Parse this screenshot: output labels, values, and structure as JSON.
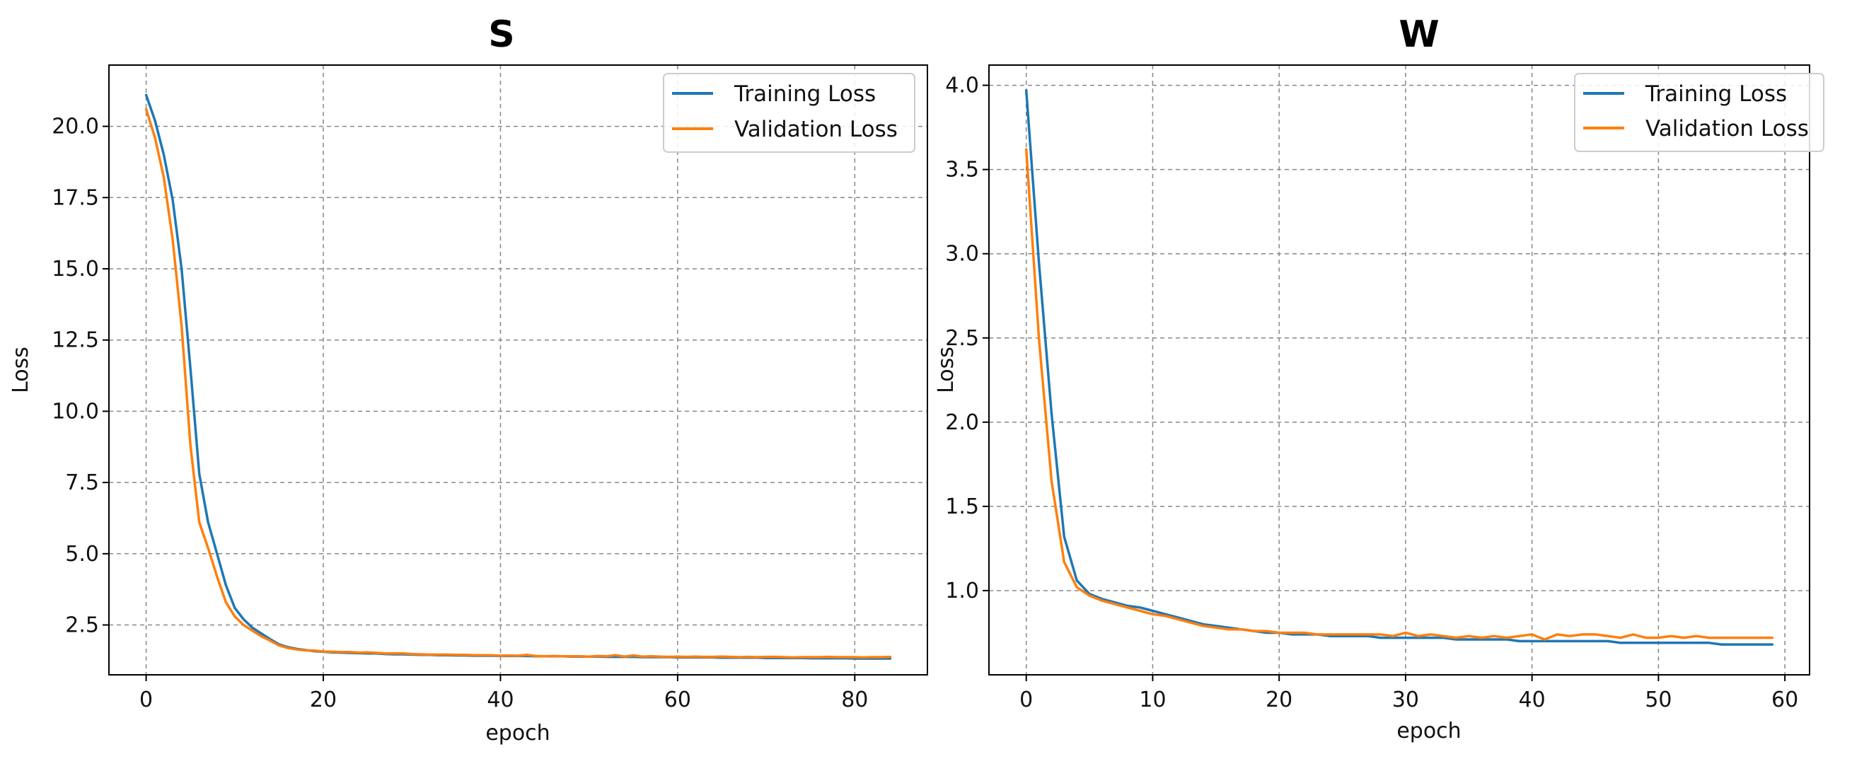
{
  "chart_data": [
    {
      "type": "line",
      "title": "S",
      "xlabel": "epoch",
      "ylabel": "Loss",
      "xlim": [
        -4.2,
        88.2
      ],
      "ylim": [
        0.75,
        22.15
      ],
      "xticks": [
        0,
        20,
        40,
        60,
        80
      ],
      "xtick_labels": [
        "0",
        "20",
        "40",
        "60",
        "80"
      ],
      "yticks": [
        2.5,
        5.0,
        7.5,
        10.0,
        12.5,
        15.0,
        17.5,
        20.0
      ],
      "ytick_labels": [
        "2.5",
        "5.0",
        "7.5",
        "10.0",
        "12.5",
        "15.0",
        "17.5",
        "20.0"
      ],
      "grid": true,
      "legend_position": "top-right",
      "series": [
        {
          "name": "Training Loss",
          "color": "#1f77b4",
          "x": [
            0,
            1,
            2,
            3,
            4,
            5,
            6,
            7,
            8,
            9,
            10,
            11,
            12,
            13,
            14,
            15,
            16,
            17,
            18,
            19,
            20,
            21,
            22,
            23,
            24,
            25,
            26,
            27,
            28,
            29,
            30,
            31,
            32,
            33,
            34,
            35,
            36,
            37,
            38,
            39,
            40,
            41,
            42,
            43,
            44,
            45,
            46,
            47,
            48,
            49,
            50,
            51,
            52,
            53,
            54,
            55,
            56,
            57,
            58,
            59,
            60,
            61,
            62,
            63,
            64,
            65,
            66,
            67,
            68,
            69,
            70,
            71,
            72,
            73,
            74,
            75,
            76,
            77,
            78,
            79,
            80,
            81,
            82,
            83,
            84
          ],
          "values": [
            21.1,
            20.2,
            19.0,
            17.4,
            15.0,
            11.5,
            7.8,
            6.1,
            5.0,
            3.9,
            3.1,
            2.7,
            2.4,
            2.2,
            2.0,
            1.82,
            1.72,
            1.66,
            1.62,
            1.58,
            1.56,
            1.54,
            1.53,
            1.52,
            1.51,
            1.5,
            1.5,
            1.48,
            1.47,
            1.47,
            1.46,
            1.45,
            1.45,
            1.44,
            1.44,
            1.43,
            1.43,
            1.42,
            1.42,
            1.42,
            1.41,
            1.41,
            1.41,
            1.41,
            1.4,
            1.4,
            1.4,
            1.4,
            1.39,
            1.39,
            1.39,
            1.39,
            1.38,
            1.38,
            1.38,
            1.38,
            1.37,
            1.37,
            1.37,
            1.37,
            1.36,
            1.36,
            1.36,
            1.36,
            1.36,
            1.35,
            1.35,
            1.35,
            1.35,
            1.35,
            1.34,
            1.34,
            1.34,
            1.34,
            1.34,
            1.33,
            1.33,
            1.33,
            1.33,
            1.33,
            1.32,
            1.32,
            1.32,
            1.32,
            1.32
          ]
        },
        {
          "name": "Validation Loss",
          "color": "#ff7f0e",
          "x": [
            0,
            1,
            2,
            3,
            4,
            5,
            6,
            7,
            8,
            9,
            10,
            11,
            12,
            13,
            14,
            15,
            16,
            17,
            18,
            19,
            20,
            21,
            22,
            23,
            24,
            25,
            26,
            27,
            28,
            29,
            30,
            31,
            32,
            33,
            34,
            35,
            36,
            37,
            38,
            39,
            40,
            41,
            42,
            43,
            44,
            45,
            46,
            47,
            48,
            49,
            50,
            51,
            52,
            53,
            54,
            55,
            56,
            57,
            58,
            59,
            60,
            61,
            62,
            63,
            64,
            65,
            66,
            67,
            68,
            69,
            70,
            71,
            72,
            73,
            74,
            75,
            76,
            77,
            78,
            79,
            80,
            81,
            82,
            83,
            84
          ],
          "values": [
            20.6,
            19.6,
            18.2,
            16.0,
            13.0,
            8.8,
            6.1,
            5.2,
            4.2,
            3.3,
            2.8,
            2.5,
            2.3,
            2.1,
            1.95,
            1.78,
            1.69,
            1.64,
            1.61,
            1.6,
            1.57,
            1.56,
            1.55,
            1.55,
            1.53,
            1.54,
            1.52,
            1.5,
            1.5,
            1.5,
            1.48,
            1.47,
            1.46,
            1.46,
            1.46,
            1.45,
            1.45,
            1.44,
            1.44,
            1.44,
            1.42,
            1.43,
            1.42,
            1.45,
            1.41,
            1.4,
            1.41,
            1.4,
            1.4,
            1.4,
            1.39,
            1.41,
            1.4,
            1.44,
            1.39,
            1.43,
            1.39,
            1.4,
            1.39,
            1.38,
            1.39,
            1.38,
            1.39,
            1.38,
            1.38,
            1.39,
            1.38,
            1.37,
            1.38,
            1.37,
            1.38,
            1.38,
            1.37,
            1.36,
            1.37,
            1.37,
            1.37,
            1.38,
            1.37,
            1.37,
            1.37,
            1.36,
            1.37,
            1.37,
            1.38
          ]
        }
      ]
    },
    {
      "type": "line",
      "title": "W",
      "xlabel": "epoch",
      "ylabel": "Loss",
      "xlim": [
        -2.95,
        61.95
      ],
      "ylim": [
        0.5,
        4.12
      ],
      "xticks": [
        0,
        10,
        20,
        30,
        40,
        50,
        60
      ],
      "xtick_labels": [
        "0",
        "10",
        "20",
        "30",
        "40",
        "50",
        "60"
      ],
      "yticks": [
        1.0,
        1.5,
        2.0,
        2.5,
        3.0,
        3.5,
        4.0
      ],
      "ytick_labels": [
        "1.0",
        "1.5",
        "2.0",
        "2.5",
        "3.0",
        "3.5",
        "4.0"
      ],
      "grid": true,
      "legend_position": "top-right",
      "series": [
        {
          "name": "Training Loss",
          "color": "#1f77b4",
          "x": [
            0,
            1,
            2,
            3,
            4,
            5,
            6,
            7,
            8,
            9,
            10,
            11,
            12,
            13,
            14,
            15,
            16,
            17,
            18,
            19,
            20,
            21,
            22,
            23,
            24,
            25,
            26,
            27,
            28,
            29,
            30,
            31,
            32,
            33,
            34,
            35,
            36,
            37,
            38,
            39,
            40,
            41,
            42,
            43,
            44,
            45,
            46,
            47,
            48,
            49,
            50,
            51,
            52,
            53,
            54,
            55,
            56,
            57,
            58,
            59
          ],
          "values": [
            3.97,
            2.95,
            2.05,
            1.32,
            1.06,
            0.98,
            0.95,
            0.93,
            0.91,
            0.9,
            0.88,
            0.86,
            0.84,
            0.82,
            0.8,
            0.79,
            0.78,
            0.77,
            0.76,
            0.75,
            0.75,
            0.74,
            0.74,
            0.74,
            0.73,
            0.73,
            0.73,
            0.73,
            0.72,
            0.72,
            0.72,
            0.72,
            0.72,
            0.72,
            0.71,
            0.71,
            0.71,
            0.71,
            0.71,
            0.7,
            0.7,
            0.7,
            0.7,
            0.7,
            0.7,
            0.7,
            0.7,
            0.69,
            0.69,
            0.69,
            0.69,
            0.69,
            0.69,
            0.69,
            0.69,
            0.68,
            0.68,
            0.68,
            0.68,
            0.68
          ]
        },
        {
          "name": "Validation Loss",
          "color": "#ff7f0e",
          "x": [
            0,
            1,
            2,
            3,
            4,
            5,
            6,
            7,
            8,
            9,
            10,
            11,
            12,
            13,
            14,
            15,
            16,
            17,
            18,
            19,
            20,
            21,
            22,
            23,
            24,
            25,
            26,
            27,
            28,
            29,
            30,
            31,
            32,
            33,
            34,
            35,
            36,
            37,
            38,
            39,
            40,
            41,
            42,
            43,
            44,
            45,
            46,
            47,
            48,
            49,
            50,
            51,
            52,
            53,
            54,
            55,
            56,
            57,
            58,
            59
          ],
          "values": [
            3.62,
            2.5,
            1.65,
            1.17,
            1.02,
            0.97,
            0.94,
            0.92,
            0.9,
            0.88,
            0.86,
            0.85,
            0.83,
            0.81,
            0.79,
            0.78,
            0.77,
            0.77,
            0.76,
            0.76,
            0.75,
            0.75,
            0.75,
            0.74,
            0.74,
            0.74,
            0.74,
            0.74,
            0.74,
            0.73,
            0.75,
            0.73,
            0.74,
            0.73,
            0.72,
            0.73,
            0.72,
            0.73,
            0.72,
            0.73,
            0.74,
            0.71,
            0.74,
            0.73,
            0.74,
            0.74,
            0.73,
            0.72,
            0.74,
            0.72,
            0.72,
            0.73,
            0.72,
            0.73,
            0.72,
            0.72,
            0.72,
            0.72,
            0.72,
            0.72
          ]
        }
      ]
    }
  ]
}
